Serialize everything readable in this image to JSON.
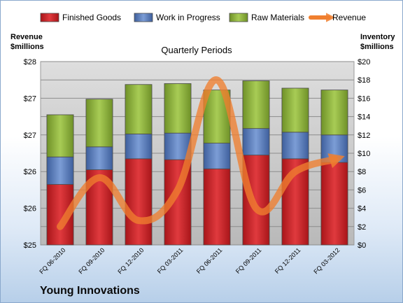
{
  "chart_data": {
    "type": "bar",
    "subtitle": "Quarterly Periods",
    "categories": [
      "FQ 06-2010",
      "FQ 09-2010",
      "FQ 12-2010",
      "FQ 03-2011",
      "FQ 06-2011",
      "FQ 09-2011",
      "FQ 12-2011",
      "FQ 03-2012"
    ],
    "series": [
      {
        "name": "Finished Goods",
        "axis": "right",
        "color": "#c9262b",
        "values": [
          6.6,
          8.2,
          9.4,
          9.3,
          8.3,
          9.8,
          9.4,
          9.0
        ]
      },
      {
        "name": "Work in Progress",
        "axis": "right",
        "color": "#5b7fbf",
        "values": [
          3.0,
          2.5,
          2.7,
          2.9,
          2.8,
          2.9,
          2.9,
          3.0
        ]
      },
      {
        "name": "Raw Materials",
        "axis": "right",
        "color": "#8db33c",
        "values": [
          4.6,
          5.2,
          5.4,
          5.4,
          5.8,
          5.2,
          4.8,
          4.9
        ]
      },
      {
        "name": "Revenue",
        "axis": "left",
        "type": "line",
        "color": "#f07f2f",
        "values": [
          25.3,
          26.1,
          25.4,
          25.9,
          27.7,
          25.6,
          26.2,
          26.4
        ]
      }
    ],
    "y_left": {
      "label_line1": "Revenue",
      "label_line2": "$millions",
      "ylim": [
        25,
        28
      ],
      "ticks": [
        "$25",
        "$26",
        "$26",
        "$27",
        "$27",
        "$28"
      ]
    },
    "y_right": {
      "label_line1": "Inventory",
      "label_line2": "$millions",
      "ylim": [
        0,
        20
      ],
      "ticks": [
        "$0",
        "$2",
        "$4",
        "$6",
        "$8",
        "$10",
        "$12",
        "$14",
        "$16",
        "$18",
        "$20"
      ]
    },
    "legend_placement": "top",
    "grid": true
  },
  "company": "Young Innovations"
}
